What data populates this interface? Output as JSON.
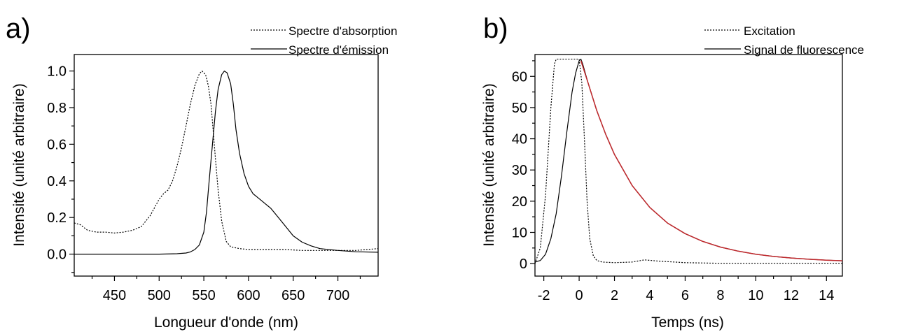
{
  "chart_data": [
    {
      "type": "line",
      "panel_label": "a)",
      "xlabel": "Longueur d'onde (nm)",
      "ylabel": "Intensité (unité arbitraire)",
      "xlim": [
        405,
        745
      ],
      "ylim": [
        -0.12,
        1.09
      ],
      "xticks": [
        450,
        500,
        550,
        600,
        650,
        700
      ],
      "xtick_labels": [
        "450",
        "500",
        "550",
        "600",
        "650",
        "700"
      ],
      "yticks": [
        0.0,
        0.2,
        0.4,
        0.6,
        0.8,
        1.0
      ],
      "ytick_labels": [
        "0.0",
        "0.2",
        "0.4",
        "0.6",
        "0.8",
        "1.0"
      ],
      "legend_position": "top-right",
      "series": [
        {
          "name": "Spectre d'absorption",
          "style": "dotted",
          "color": "#000000",
          "x": [
            405,
            412,
            420,
            430,
            440,
            450,
            460,
            470,
            480,
            490,
            500,
            505,
            510,
            515,
            520,
            525,
            530,
            535,
            540,
            545,
            548,
            552,
            555,
            558,
            560,
            563,
            566,
            570,
            575,
            580,
            590,
            600,
            620,
            640,
            660,
            680,
            700,
            720,
            745
          ],
          "y": [
            0.17,
            0.16,
            0.13,
            0.12,
            0.12,
            0.115,
            0.12,
            0.13,
            0.15,
            0.21,
            0.3,
            0.33,
            0.35,
            0.4,
            0.48,
            0.58,
            0.7,
            0.82,
            0.92,
            0.985,
            1.0,
            0.98,
            0.92,
            0.82,
            0.7,
            0.52,
            0.35,
            0.18,
            0.07,
            0.04,
            0.03,
            0.025,
            0.025,
            0.025,
            0.02,
            0.02,
            0.02,
            0.02,
            0.03
          ]
        },
        {
          "name": "Spectre d'émission",
          "style": "solid",
          "color": "#000000",
          "x": [
            405,
            500,
            520,
            530,
            535,
            540,
            545,
            550,
            553,
            556,
            560,
            563,
            566,
            570,
            573,
            576,
            580,
            583,
            586,
            590,
            595,
            600,
            605,
            610,
            615,
            620,
            625,
            630,
            640,
            650,
            660,
            670,
            680,
            700,
            720,
            745
          ],
          "y": [
            0.0,
            0.0,
            0.002,
            0.006,
            0.012,
            0.025,
            0.05,
            0.12,
            0.23,
            0.4,
            0.62,
            0.78,
            0.9,
            0.98,
            1.0,
            0.99,
            0.93,
            0.82,
            0.68,
            0.55,
            0.44,
            0.37,
            0.33,
            0.31,
            0.29,
            0.27,
            0.25,
            0.22,
            0.16,
            0.1,
            0.065,
            0.045,
            0.03,
            0.02,
            0.013,
            0.01
          ]
        }
      ]
    },
    {
      "type": "line",
      "panel_label": "b)",
      "xlabel": "Temps (ns)",
      "ylabel": "Intensité (unité arbitraire)",
      "xlim": [
        -2.5,
        14.9
      ],
      "ylim": [
        -4,
        67
      ],
      "xticks": [
        -2,
        0,
        2,
        4,
        6,
        8,
        10,
        12,
        14
      ],
      "xtick_labels": [
        "-2",
        "0",
        "2",
        "4",
        "6",
        "8",
        "10",
        "12",
        "14"
      ],
      "yticks": [
        0,
        10,
        20,
        30,
        40,
        50,
        60
      ],
      "ytick_labels": [
        "0",
        "10",
        "20",
        "30",
        "40",
        "50",
        "60"
      ],
      "legend_position": "top-right",
      "series": [
        {
          "name": "Excitation",
          "style": "dotted",
          "color": "#000000",
          "x": [
            -2.5,
            -2.2,
            -1.9,
            -1.6,
            -1.4,
            -1.3,
            -1.25,
            -0.6,
            0.0,
            0.15,
            0.3,
            0.45,
            0.6,
            0.8,
            1.0,
            1.3,
            2.0,
            3.0,
            3.7,
            4.5,
            6.0,
            8.0,
            10.0,
            12.0,
            14.9
          ],
          "y": [
            0,
            5,
            22,
            50,
            64,
            65.5,
            65.5,
            65.5,
            65.5,
            58,
            40,
            20,
            8,
            2.5,
            1,
            0.5,
            0.3,
            0.5,
            1.2,
            0.8,
            0.3,
            0.1,
            0.1,
            0.1,
            0.1
          ],
          "ycap": 65.5
        },
        {
          "name": "Signal de fluorescence",
          "style": "solid",
          "color": "#000000",
          "x": [
            -2.5,
            -2.2,
            -1.9,
            -1.6,
            -1.3,
            -1.0,
            -0.7,
            -0.4,
            -0.2,
            0.0,
            0.1,
            0.2,
            0.5,
            1.0,
            1.5,
            2.0,
            3.0,
            4.0,
            5.0,
            6.0,
            7.0,
            8.0,
            9.0,
            10.0,
            11.0,
            12.0,
            13.0,
            14.0,
            14.9
          ],
          "y": [
            0.5,
            1,
            3,
            8,
            16,
            28,
            42,
            55,
            61,
            65,
            65.5,
            64,
            58,
            49,
            41.5,
            35,
            25,
            18,
            13,
            9.6,
            7.1,
            5.3,
            4.0,
            3.0,
            2.3,
            1.8,
            1.4,
            1.1,
            0.9
          ]
        },
        {
          "style": "solid",
          "color": "#c0282c",
          "x": [
            0.1,
            0.5,
            1.0,
            1.5,
            2.0,
            3.0,
            4.0,
            5.0,
            6.0,
            7.0,
            8.0,
            9.0,
            10.0,
            11.0,
            12.0,
            13.0,
            14.0,
            14.9
          ],
          "y": [
            65,
            58,
            49,
            41.5,
            35,
            25,
            18,
            13,
            9.6,
            7.1,
            5.3,
            4.0,
            3.0,
            2.3,
            1.8,
            1.4,
            1.1,
            0.9
          ]
        }
      ]
    }
  ]
}
